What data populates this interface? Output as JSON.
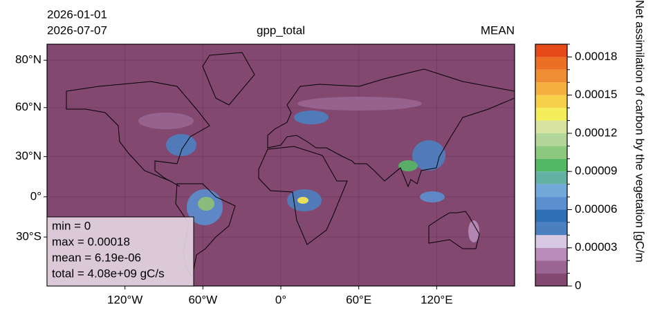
{
  "chart_data": {
    "type": "map",
    "date_start": "2026-01-01",
    "date_end": "2026-07-07",
    "title": "gpp_total",
    "statistic": "MEAN",
    "projection": "miller",
    "xlim": [
      -180,
      180
    ],
    "ylim": [
      -60,
      85
    ],
    "xticks": [
      {
        "value": -120,
        "label": "120°W"
      },
      {
        "value": -60,
        "label": "60°W"
      },
      {
        "value": 0,
        "label": "0°"
      },
      {
        "value": 60,
        "label": "60°E"
      },
      {
        "value": 120,
        "label": "120°E"
      }
    ],
    "yticks": [
      {
        "value": 80,
        "label": "80°N"
      },
      {
        "value": 60,
        "label": "60°N"
      },
      {
        "value": 30,
        "label": "30°N"
      },
      {
        "value": 0,
        "label": "0°"
      },
      {
        "value": -30,
        "label": "30°S"
      }
    ],
    "grid": true,
    "stats": [
      "min = 0",
      "max = 0.00018",
      "mean = 6.19e-06",
      "total = 4.08e+09 gC/s"
    ],
    "colorbar": {
      "label": "Net assimilation of carbon by the vegetation [gC/m",
      "clim": [
        0,
        0.00019
      ],
      "levels": [
        0,
        1e-05,
        2e-05,
        3e-05,
        4e-05,
        5e-05,
        6e-05,
        7e-05,
        8e-05,
        9e-05,
        0.0001,
        0.00011,
        0.00012,
        0.00013,
        0.00014,
        0.00015,
        0.00016,
        0.00017,
        0.00018,
        0.00019
      ],
      "colors": [
        "#834870",
        "#9a6592",
        "#b98cba",
        "#d8c8e3",
        "#4b80c0",
        "#2f6fb6",
        "#5a90cf",
        "#72a8da",
        "#63b1a2",
        "#55b865",
        "#8cc97e",
        "#b3d69a",
        "#d8e3a0",
        "#f5ee5a",
        "#f7d04a",
        "#f4b03e",
        "#ef8e32",
        "#eb7025",
        "#e64a19"
      ],
      "ticks": [
        0,
        {
          "value": 3e-05,
          "label": "0.00003"
        },
        {
          "value": 6e-05,
          "label": "0.00006"
        },
        {
          "value": 9e-05,
          "label": "0.00009"
        },
        {
          "value": 0.00012,
          "label": "0.00012"
        },
        {
          "value": 0.00015,
          "label": "0.00015"
        },
        {
          "value": 0.00018,
          "label": "0.00018"
        }
      ]
    }
  }
}
